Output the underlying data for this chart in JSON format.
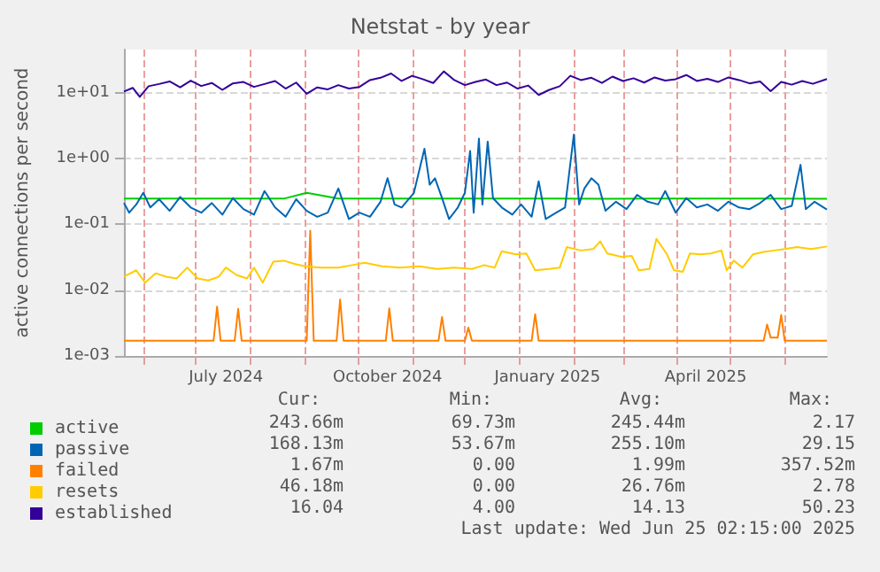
{
  "chart_data": {
    "type": "line",
    "title": "Netstat - by year",
    "ylabel": "active connections per second",
    "log": "y",
    "grid": true,
    "legend": "bottom left",
    "marker": "none",
    "line_style": "solid",
    "xlim": [
      "2024-05-21",
      "2025-06-25"
    ],
    "xticks": [
      {
        "value": "2024-06-01",
        "label": null
      },
      {
        "value": "2024-07-01",
        "label": null
      },
      {
        "value": "2024-07-18",
        "label": "July 2024"
      },
      {
        "value": "2024-08-01",
        "label": null
      },
      {
        "value": "2024-09-01",
        "label": null
      },
      {
        "value": "2024-10-01",
        "label": null
      },
      {
        "value": "2024-10-18",
        "label": "October 2024"
      },
      {
        "value": "2024-11-01",
        "label": null
      },
      {
        "value": "2024-12-01",
        "label": null
      },
      {
        "value": "2025-01-01",
        "label": null
      },
      {
        "value": "2025-01-17",
        "label": "January 2025"
      },
      {
        "value": "2025-02-01",
        "label": null
      },
      {
        "value": "2025-03-01",
        "label": null
      },
      {
        "value": "2025-04-01",
        "label": null
      },
      {
        "value": "2025-04-17",
        "label": "April 2025"
      },
      {
        "value": "2025-05-01",
        "label": null
      },
      {
        "value": "2025-06-01",
        "label": null
      }
    ],
    "ylim": [
      0.001,
      45
    ],
    "yticks": [
      {
        "value": 0.001,
        "label": "1e-03"
      },
      {
        "value": 0.01,
        "label": "1e-02"
      },
      {
        "value": 0.1,
        "label": "1e-01"
      },
      {
        "value": 1,
        "label": "1e+00"
      },
      {
        "value": 10,
        "label": "1e+01"
      }
    ],
    "series": [
      {
        "name": "active",
        "color": "#00cc00",
        "x": [
          "2024-05-21",
          "2024-06-20",
          "2024-07-20",
          "2024-08-20",
          "2024-09-02",
          "2024-09-20",
          "2024-10-20",
          "2024-11-20",
          "2024-12-20",
          "2025-01-20",
          "2025-02-20",
          "2025-03-20",
          "2025-04-20",
          "2025-05-20",
          "2025-06-25"
        ],
        "values": [
          0.245,
          0.245,
          0.246,
          0.245,
          0.3,
          0.245,
          0.246,
          0.245,
          0.245,
          0.245,
          0.244,
          0.245,
          0.245,
          0.245,
          0.244
        ]
      },
      {
        "name": "passive",
        "color": "#0066b3",
        "x": [
          "2024-05-21",
          "2024-05-24",
          "2024-05-28",
          "2024-06-01",
          "2024-06-05",
          "2024-06-10",
          "2024-06-16",
          "2024-06-22",
          "2024-06-28",
          "2024-07-04",
          "2024-07-10",
          "2024-07-16",
          "2024-07-22",
          "2024-07-28",
          "2024-08-03",
          "2024-08-09",
          "2024-08-15",
          "2024-08-21",
          "2024-08-27",
          "2024-09-02",
          "2024-09-08",
          "2024-09-14",
          "2024-09-20",
          "2024-09-26",
          "2024-10-02",
          "2024-10-08",
          "2024-10-14",
          "2024-10-18",
          "2024-10-22",
          "2024-10-26",
          "2024-11-02",
          "2024-11-08",
          "2024-11-11",
          "2024-11-14",
          "2024-11-18",
          "2024-11-22",
          "2024-11-27",
          "2024-12-01",
          "2024-12-04",
          "2024-12-06",
          "2024-12-09",
          "2024-12-11",
          "2024-12-14",
          "2024-12-17",
          "2024-12-22",
          "2024-12-28",
          "2025-01-02",
          "2025-01-08",
          "2025-01-12",
          "2025-01-16",
          "2025-01-22",
          "2025-01-27",
          "2025-02-01",
          "2025-02-04",
          "2025-02-07",
          "2025-02-11",
          "2025-02-15",
          "2025-02-19",
          "2025-02-25",
          "2025-03-03",
          "2025-03-09",
          "2025-03-15",
          "2025-03-21",
          "2025-03-25",
          "2025-03-31",
          "2025-04-06",
          "2025-04-12",
          "2025-04-18",
          "2025-04-24",
          "2025-04-30",
          "2025-05-06",
          "2025-05-12",
          "2025-05-18",
          "2025-05-24",
          "2025-05-30",
          "2025-06-05",
          "2025-06-10",
          "2025-06-13",
          "2025-06-18",
          "2025-06-25"
        ],
        "values": [
          0.21,
          0.15,
          0.2,
          0.3,
          0.18,
          0.24,
          0.16,
          0.26,
          0.18,
          0.15,
          0.21,
          0.14,
          0.25,
          0.17,
          0.14,
          0.32,
          0.18,
          0.13,
          0.24,
          0.16,
          0.13,
          0.15,
          0.35,
          0.12,
          0.15,
          0.13,
          0.22,
          0.5,
          0.2,
          0.18,
          0.3,
          1.4,
          0.4,
          0.5,
          0.25,
          0.12,
          0.18,
          0.3,
          1.3,
          0.15,
          2.0,
          0.2,
          1.8,
          0.25,
          0.18,
          0.14,
          0.2,
          0.13,
          0.45,
          0.12,
          0.15,
          0.18,
          2.3,
          0.2,
          0.35,
          0.5,
          0.4,
          0.16,
          0.22,
          0.17,
          0.28,
          0.22,
          0.2,
          0.32,
          0.15,
          0.25,
          0.18,
          0.2,
          0.16,
          0.22,
          0.18,
          0.17,
          0.21,
          0.28,
          0.17,
          0.19,
          0.8,
          0.17,
          0.22,
          0.168
        ]
      },
      {
        "name": "failed",
        "color": "#ff8000",
        "x": [
          "2024-05-21",
          "2024-07-11",
          "2024-07-13",
          "2024-07-15",
          "2024-07-23",
          "2024-07-25",
          "2024-07-27",
          "2024-09-02",
          "2024-09-04",
          "2024-09-06",
          "2024-09-19",
          "2024-09-21",
          "2024-09-23",
          "2024-10-17",
          "2024-10-19",
          "2024-10-21",
          "2024-11-16",
          "2024-11-18",
          "2024-11-20",
          "2024-12-01",
          "2024-12-03",
          "2024-12-05",
          "2025-01-08",
          "2025-01-10",
          "2025-01-12",
          "2025-05-20",
          "2025-05-22",
          "2025-05-24",
          "2025-05-28",
          "2025-05-30",
          "2025-06-01",
          "2025-06-25"
        ],
        "values": [
          0.0017,
          0.0017,
          0.0056,
          0.0017,
          0.0017,
          0.0052,
          0.0017,
          0.0017,
          0.08,
          0.0017,
          0.0017,
          0.0072,
          0.0017,
          0.0017,
          0.0053,
          0.0017,
          0.0017,
          0.0039,
          0.0017,
          0.0017,
          0.0027,
          0.0017,
          0.0017,
          0.0043,
          0.0017,
          0.0017,
          0.003,
          0.0019,
          0.0019,
          0.0042,
          0.0017,
          0.0017
        ]
      },
      {
        "name": "resets",
        "color": "#ffcc00",
        "x": [
          "2024-05-21",
          "2024-05-28",
          "2024-06-02",
          "2024-06-08",
          "2024-06-14",
          "2024-06-20",
          "2024-06-26",
          "2024-07-02",
          "2024-07-08",
          "2024-07-14",
          "2024-07-18",
          "2024-07-24",
          "2024-07-30",
          "2024-08-03",
          "2024-08-08",
          "2024-08-14",
          "2024-08-20",
          "2024-08-26",
          "2024-09-01",
          "2024-09-10",
          "2024-09-20",
          "2024-09-28",
          "2024-10-05",
          "2024-10-15",
          "2024-10-25",
          "2024-11-05",
          "2024-11-15",
          "2024-11-25",
          "2024-12-05",
          "2024-12-12",
          "2024-12-18",
          "2024-12-22",
          "2024-12-30",
          "2025-01-05",
          "2025-01-10",
          "2025-01-18",
          "2025-01-24",
          "2025-01-28",
          "2025-02-05",
          "2025-02-12",
          "2025-02-16",
          "2025-02-20",
          "2025-02-28",
          "2025-03-06",
          "2025-03-10",
          "2025-03-16",
          "2025-03-20",
          "2025-03-26",
          "2025-03-30",
          "2025-04-04",
          "2025-04-08",
          "2025-04-14",
          "2025-04-20",
          "2025-04-26",
          "2025-04-29",
          "2025-05-03",
          "2025-05-08",
          "2025-05-14",
          "2025-05-20",
          "2025-05-26",
          "2025-06-01",
          "2025-06-08",
          "2025-06-16",
          "2025-06-25"
        ],
        "values": [
          0.016,
          0.02,
          0.013,
          0.018,
          0.016,
          0.015,
          0.022,
          0.015,
          0.014,
          0.016,
          0.022,
          0.017,
          0.015,
          0.022,
          0.013,
          0.027,
          0.028,
          0.025,
          0.023,
          0.022,
          0.022,
          0.024,
          0.026,
          0.023,
          0.022,
          0.023,
          0.021,
          0.022,
          0.021,
          0.024,
          0.022,
          0.039,
          0.035,
          0.036,
          0.02,
          0.021,
          0.022,
          0.045,
          0.04,
          0.042,
          0.055,
          0.036,
          0.032,
          0.033,
          0.02,
          0.021,
          0.06,
          0.035,
          0.02,
          0.019,
          0.036,
          0.035,
          0.036,
          0.04,
          0.02,
          0.028,
          0.022,
          0.035,
          0.038,
          0.04,
          0.042,
          0.045,
          0.042,
          0.046
        ]
      },
      {
        "name": "established",
        "color": "#330099",
        "x": [
          "2024-05-21",
          "2024-05-26",
          "2024-05-30",
          "2024-06-04",
          "2024-06-10",
          "2024-06-16",
          "2024-06-22",
          "2024-06-28",
          "2024-07-04",
          "2024-07-10",
          "2024-07-16",
          "2024-07-22",
          "2024-07-28",
          "2024-08-03",
          "2024-08-09",
          "2024-08-15",
          "2024-08-21",
          "2024-08-27",
          "2024-09-02",
          "2024-09-08",
          "2024-09-14",
          "2024-09-20",
          "2024-09-26",
          "2024-10-02",
          "2024-10-08",
          "2024-10-14",
          "2024-10-20",
          "2024-10-26",
          "2024-11-01",
          "2024-11-07",
          "2024-11-13",
          "2024-11-19",
          "2024-11-25",
          "2024-12-01",
          "2024-12-07",
          "2024-12-13",
          "2024-12-19",
          "2024-12-25",
          "2024-12-31",
          "2025-01-06",
          "2025-01-12",
          "2025-01-18",
          "2025-01-24",
          "2025-01-30",
          "2025-02-05",
          "2025-02-11",
          "2025-02-17",
          "2025-02-23",
          "2025-03-01",
          "2025-03-07",
          "2025-03-13",
          "2025-03-19",
          "2025-03-25",
          "2025-03-31",
          "2025-04-06",
          "2025-04-12",
          "2025-04-18",
          "2025-04-24",
          "2025-04-30",
          "2025-05-06",
          "2025-05-12",
          "2025-05-18",
          "2025-05-24",
          "2025-05-30",
          "2025-06-05",
          "2025-06-11",
          "2025-06-17",
          "2025-06-25"
        ],
        "values": [
          10.4,
          11.8,
          8.6,
          12.5,
          13.5,
          14.8,
          12.0,
          15.2,
          12.6,
          14.0,
          11.0,
          13.8,
          14.5,
          12.2,
          13.5,
          15.0,
          11.5,
          14.2,
          9.6,
          12.0,
          11.2,
          13.0,
          11.5,
          12.2,
          15.5,
          16.8,
          19.5,
          15.0,
          18.0,
          16.0,
          14.0,
          21.0,
          15.5,
          13.0,
          14.5,
          15.8,
          13.0,
          14.2,
          11.5,
          12.8,
          9.2,
          11.0,
          12.5,
          18.0,
          15.5,
          16.8,
          14.0,
          17.5,
          15.0,
          16.5,
          14.2,
          17.0,
          15.2,
          16.0,
          18.5,
          15.0,
          16.2,
          14.5,
          17.0,
          15.5,
          13.8,
          14.8,
          10.5,
          14.5,
          13.2,
          15.0,
          13.6,
          16.04
        ]
      }
    ],
    "annotations": [
      "Cur:",
      "Min:",
      "Avg:",
      "Max:",
      "243.66m",
      "69.73m",
      "245.44m",
      "2.17",
      "168.13m",
      "53.67m",
      "255.10m",
      "29.15",
      "1.67m",
      "0.00",
      "1.99m",
      "357.52m",
      "46.18m",
      "0.00",
      "26.76m",
      "2.78",
      "16.04",
      "4.00",
      "14.13",
      "50.23",
      "Last update: Wed Jun 25 02:15:00 2025"
    ]
  }
}
